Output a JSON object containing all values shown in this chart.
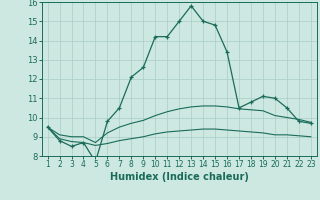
{
  "xlabel": "Humidex (Indice chaleur)",
  "x": [
    1,
    2,
    3,
    4,
    5,
    6,
    7,
    8,
    9,
    10,
    11,
    12,
    13,
    14,
    15,
    16,
    17,
    18,
    19,
    20,
    21,
    22,
    23
  ],
  "line1": [
    9.5,
    8.8,
    8.5,
    8.7,
    7.7,
    9.8,
    10.5,
    12.1,
    12.6,
    14.2,
    14.2,
    15.0,
    15.8,
    15.0,
    14.8,
    13.4,
    10.5,
    10.8,
    11.1,
    11.0,
    10.5,
    9.8,
    9.7
  ],
  "line2": [
    9.5,
    9.1,
    9.0,
    9.0,
    8.7,
    9.2,
    9.5,
    9.7,
    9.85,
    10.1,
    10.3,
    10.45,
    10.55,
    10.6,
    10.6,
    10.55,
    10.45,
    10.4,
    10.35,
    10.1,
    10.0,
    9.9,
    9.75
  ],
  "line3": [
    9.5,
    8.9,
    8.75,
    8.7,
    8.55,
    8.65,
    8.8,
    8.9,
    9.0,
    9.15,
    9.25,
    9.3,
    9.35,
    9.4,
    9.4,
    9.35,
    9.3,
    9.25,
    9.2,
    9.1,
    9.1,
    9.05,
    9.0
  ],
  "line_color": "#1a6b5a",
  "bg_color": "#cde8e1",
  "grid_color": "#a8cec7",
  "ylim": [
    8,
    16
  ],
  "yticks": [
    8,
    9,
    10,
    11,
    12,
    13,
    14,
    15,
    16
  ],
  "xticks": [
    1,
    2,
    3,
    4,
    5,
    6,
    7,
    8,
    9,
    10,
    11,
    12,
    13,
    14,
    15,
    16,
    17,
    18,
    19,
    20,
    21,
    22,
    23
  ]
}
